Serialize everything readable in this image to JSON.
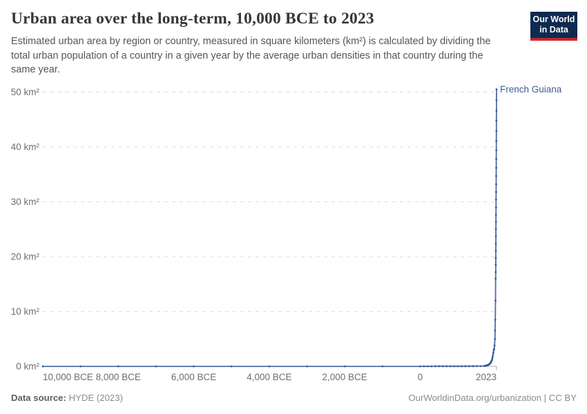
{
  "header": {
    "title": "Urban area over the long-term, 10,000 BCE to 2023",
    "subtitle": "Estimated urban area by region or country, measured in square kilometers (km²) is calculated by dividing the total urban population of a country in a given year by the average urban densities in that country during the same year.",
    "logo": {
      "line1": "Our World",
      "line2": "in Data",
      "bg_color": "#0E2A50",
      "bar_color": "#C6282B"
    }
  },
  "footer": {
    "source_label": "Data source:",
    "source_value": "HYDE (2023)",
    "credit": "OurWorldinData.org/urbanization | CC BY"
  },
  "chart_data": {
    "type": "line",
    "title": "Urban area over the long-term, 10,000 BCE to 2023",
    "xlabel": "",
    "ylabel": "km²",
    "xlim": [
      -10000,
      2023
    ],
    "ylim": [
      0,
      50
    ],
    "grid": "horizontal-dashed",
    "grid_color": "#dddddd",
    "axis_color": "#a8a8a8",
    "legend": "entity label at line end",
    "x_ticks": [
      {
        "value": -10000,
        "label": "10,000 BCE",
        "align": "start"
      },
      {
        "value": -8000,
        "label": "8,000 BCE",
        "align": "middle"
      },
      {
        "value": -6000,
        "label": "6,000 BCE",
        "align": "middle"
      },
      {
        "value": -4000,
        "label": "4,000 BCE",
        "align": "middle"
      },
      {
        "value": -2000,
        "label": "2,000 BCE",
        "align": "middle"
      },
      {
        "value": 0,
        "label": "0",
        "align": "middle"
      },
      {
        "value": 2023,
        "label": "2023",
        "align": "end"
      }
    ],
    "y_ticks": [
      {
        "value": 0,
        "label": "0 km²"
      },
      {
        "value": 10,
        "label": "10 km²"
      },
      {
        "value": 20,
        "label": "20 km²"
      },
      {
        "value": 30,
        "label": "30 km²"
      },
      {
        "value": 40,
        "label": "40 km²"
      },
      {
        "value": 50,
        "label": "50 km²"
      }
    ],
    "series": [
      {
        "name": "French Guiana",
        "line_color": "#4E6CA9",
        "marker_color": "#3A5795",
        "label_color": "#3D5B96",
        "points": [
          [
            -10000,
            0
          ],
          [
            -9000,
            0
          ],
          [
            -8000,
            0
          ],
          [
            -7000,
            0
          ],
          [
            -6000,
            0
          ],
          [
            -5000,
            0
          ],
          [
            -4000,
            0
          ],
          [
            -3000,
            0
          ],
          [
            -2000,
            0
          ],
          [
            -1000,
            0
          ],
          [
            0,
            0
          ],
          [
            100,
            0.01
          ],
          [
            200,
            0.01
          ],
          [
            300,
            0.01
          ],
          [
            400,
            0.02
          ],
          [
            500,
            0.02
          ],
          [
            600,
            0.02
          ],
          [
            700,
            0.02
          ],
          [
            800,
            0.03
          ],
          [
            900,
            0.03
          ],
          [
            1000,
            0.03
          ],
          [
            1100,
            0.03
          ],
          [
            1200,
            0.04
          ],
          [
            1300,
            0.04
          ],
          [
            1400,
            0.04
          ],
          [
            1500,
            0.05
          ],
          [
            1600,
            0.05
          ],
          [
            1700,
            0.08
          ],
          [
            1710,
            0.09
          ],
          [
            1720,
            0.1
          ],
          [
            1730,
            0.11
          ],
          [
            1740,
            0.12
          ],
          [
            1750,
            0.14
          ],
          [
            1760,
            0.16
          ],
          [
            1770,
            0.18
          ],
          [
            1780,
            0.21
          ],
          [
            1790,
            0.24
          ],
          [
            1800,
            0.27
          ],
          [
            1810,
            0.31
          ],
          [
            1820,
            0.35
          ],
          [
            1830,
            0.4
          ],
          [
            1840,
            0.45
          ],
          [
            1850,
            0.52
          ],
          [
            1860,
            0.6
          ],
          [
            1870,
            0.7
          ],
          [
            1880,
            0.82
          ],
          [
            1890,
            0.97
          ],
          [
            1900,
            1.15
          ],
          [
            1910,
            1.4
          ],
          [
            1920,
            1.75
          ],
          [
            1930,
            2.15
          ],
          [
            1940,
            2.55
          ],
          [
            1950,
            2.95
          ],
          [
            1960,
            3.2
          ],
          [
            1970,
            3.8
          ],
          [
            1980,
            5.0
          ],
          [
            1985,
            6.5
          ],
          [
            1990,
            8.5
          ],
          [
            1995,
            12.0
          ],
          [
            2000,
            16.0
          ],
          [
            2001,
            17.2
          ],
          [
            2002,
            18.5
          ],
          [
            2003,
            19.8
          ],
          [
            2004,
            21.1
          ],
          [
            2005,
            22.4
          ],
          [
            2006,
            23.7
          ],
          [
            2007,
            25.0
          ],
          [
            2008,
            26.3
          ],
          [
            2009,
            27.6
          ],
          [
            2010,
            29.0
          ],
          [
            2011,
            30.4
          ],
          [
            2012,
            31.8
          ],
          [
            2013,
            33.2
          ],
          [
            2014,
            34.7
          ],
          [
            2015,
            36.2
          ],
          [
            2016,
            37.8
          ],
          [
            2017,
            39.4
          ],
          [
            2018,
            41.1
          ],
          [
            2019,
            42.9
          ],
          [
            2020,
            44.8
          ],
          [
            2021,
            46.6
          ],
          [
            2022,
            48.5
          ],
          [
            2023,
            50.5
          ]
        ]
      }
    ]
  }
}
